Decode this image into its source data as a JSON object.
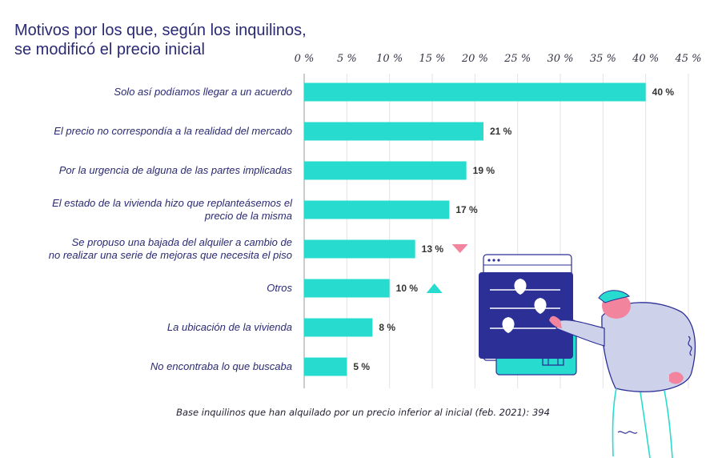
{
  "title_lines": [
    "Motivos por los que, según los inquilinos,",
    "se modificó el precio inicial"
  ],
  "footnote": "Base inquilinos que han alquilado por un precio inferior al inicial (feb. 2021): 394",
  "colors": {
    "bar": "#27dccf",
    "down_marker": "#f2849e",
    "up_marker": "#27dccf",
    "title": "#2a2a73"
  },
  "chart_data": {
    "type": "bar",
    "orientation": "horizontal",
    "title": "Motivos por los que, según los inquilinos, se modificó el precio inicial",
    "xlim": [
      0,
      45
    ],
    "x_ticks": [
      0,
      5,
      10,
      15,
      20,
      25,
      30,
      35,
      40,
      45
    ],
    "tick_labels": [
      "0 %",
      "5 %",
      "10 %",
      "15 %",
      "20 %",
      "25 %",
      "30 %",
      "35 %",
      "40 %",
      "45 %"
    ],
    "grid": true,
    "categories": [
      [
        "Solo así podíamos llegar a un acuerdo"
      ],
      [
        "El precio no correspondía a la realidad del mercado"
      ],
      [
        "Por la urgencia de alguna de las partes implicadas"
      ],
      [
        "El estado de la vivienda hizo que replanteásemos el",
        "precio de la misma"
      ],
      [
        "Se propuso una bajada del alquiler a cambio de",
        "no realizar una serie de mejoras que necesita el piso"
      ],
      [
        "Otros"
      ],
      [
        "La ubicación de la vivienda"
      ],
      [
        "No encontraba lo que buscaba"
      ]
    ],
    "values": [
      40,
      21,
      19,
      17,
      13,
      10,
      8,
      5
    ],
    "value_labels": [
      "40 %",
      "21 %",
      "19 %",
      "17 %",
      "13 %",
      "10 %",
      "8 %",
      "5 %"
    ],
    "trend_markers": [
      null,
      null,
      null,
      null,
      "down",
      "up",
      null,
      null
    ]
  }
}
